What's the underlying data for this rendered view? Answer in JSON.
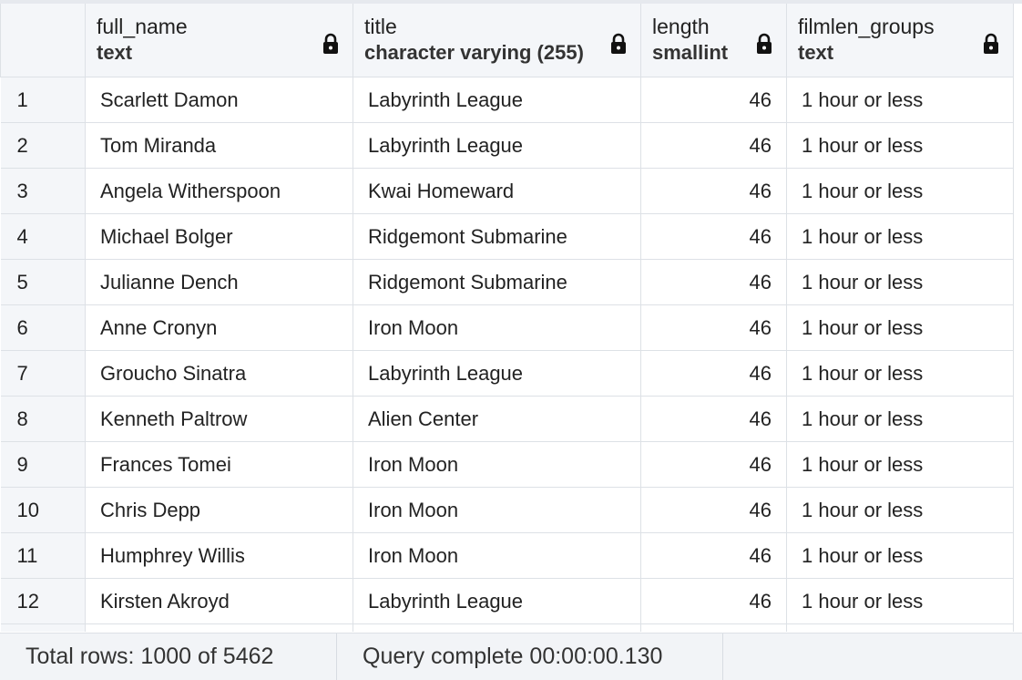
{
  "columns": [
    {
      "name": "full_name",
      "type": "text"
    },
    {
      "name": "title",
      "type": "character varying (255)"
    },
    {
      "name": "length",
      "type": "smallint"
    },
    {
      "name": "filmlen_groups",
      "type": "text"
    }
  ],
  "rows": [
    {
      "num": "1",
      "full_name": "Scarlett Damon",
      "title": "Labyrinth League",
      "length": "46",
      "filmlen_groups": "1 hour or less"
    },
    {
      "num": "2",
      "full_name": "Tom Miranda",
      "title": "Labyrinth League",
      "length": "46",
      "filmlen_groups": "1 hour or less"
    },
    {
      "num": "3",
      "full_name": "Angela Witherspoon",
      "title": "Kwai Homeward",
      "length": "46",
      "filmlen_groups": "1 hour or less"
    },
    {
      "num": "4",
      "full_name": "Michael Bolger",
      "title": "Ridgemont Submarine",
      "length": "46",
      "filmlen_groups": "1 hour or less"
    },
    {
      "num": "5",
      "full_name": "Julianne Dench",
      "title": "Ridgemont Submarine",
      "length": "46",
      "filmlen_groups": "1 hour or less"
    },
    {
      "num": "6",
      "full_name": "Anne Cronyn",
      "title": "Iron Moon",
      "length": "46",
      "filmlen_groups": "1 hour or less"
    },
    {
      "num": "7",
      "full_name": "Groucho Sinatra",
      "title": "Labyrinth League",
      "length": "46",
      "filmlen_groups": "1 hour or less"
    },
    {
      "num": "8",
      "full_name": "Kenneth Paltrow",
      "title": "Alien Center",
      "length": "46",
      "filmlen_groups": "1 hour or less"
    },
    {
      "num": "9",
      "full_name": "Frances Tomei",
      "title": "Iron Moon",
      "length": "46",
      "filmlen_groups": "1 hour or less"
    },
    {
      "num": "10",
      "full_name": "Chris Depp",
      "title": "Iron Moon",
      "length": "46",
      "filmlen_groups": "1 hour or less"
    },
    {
      "num": "11",
      "full_name": "Humphrey Willis",
      "title": "Iron Moon",
      "length": "46",
      "filmlen_groups": "1 hour or less"
    },
    {
      "num": "12",
      "full_name": "Kirsten Akroyd",
      "title": "Labyrinth League",
      "length": "46",
      "filmlen_groups": "1 hour or less"
    }
  ],
  "status": {
    "rows_text": "Total rows: 1000 of 5462",
    "query_text": "Query complete 00:00:00.130"
  },
  "icons": {
    "column_lock": "lock-icon"
  },
  "colors": {
    "header_bg": "#f4f6f9",
    "grid_line": "#dde1e6",
    "status_bg": "#f2f4f7"
  }
}
